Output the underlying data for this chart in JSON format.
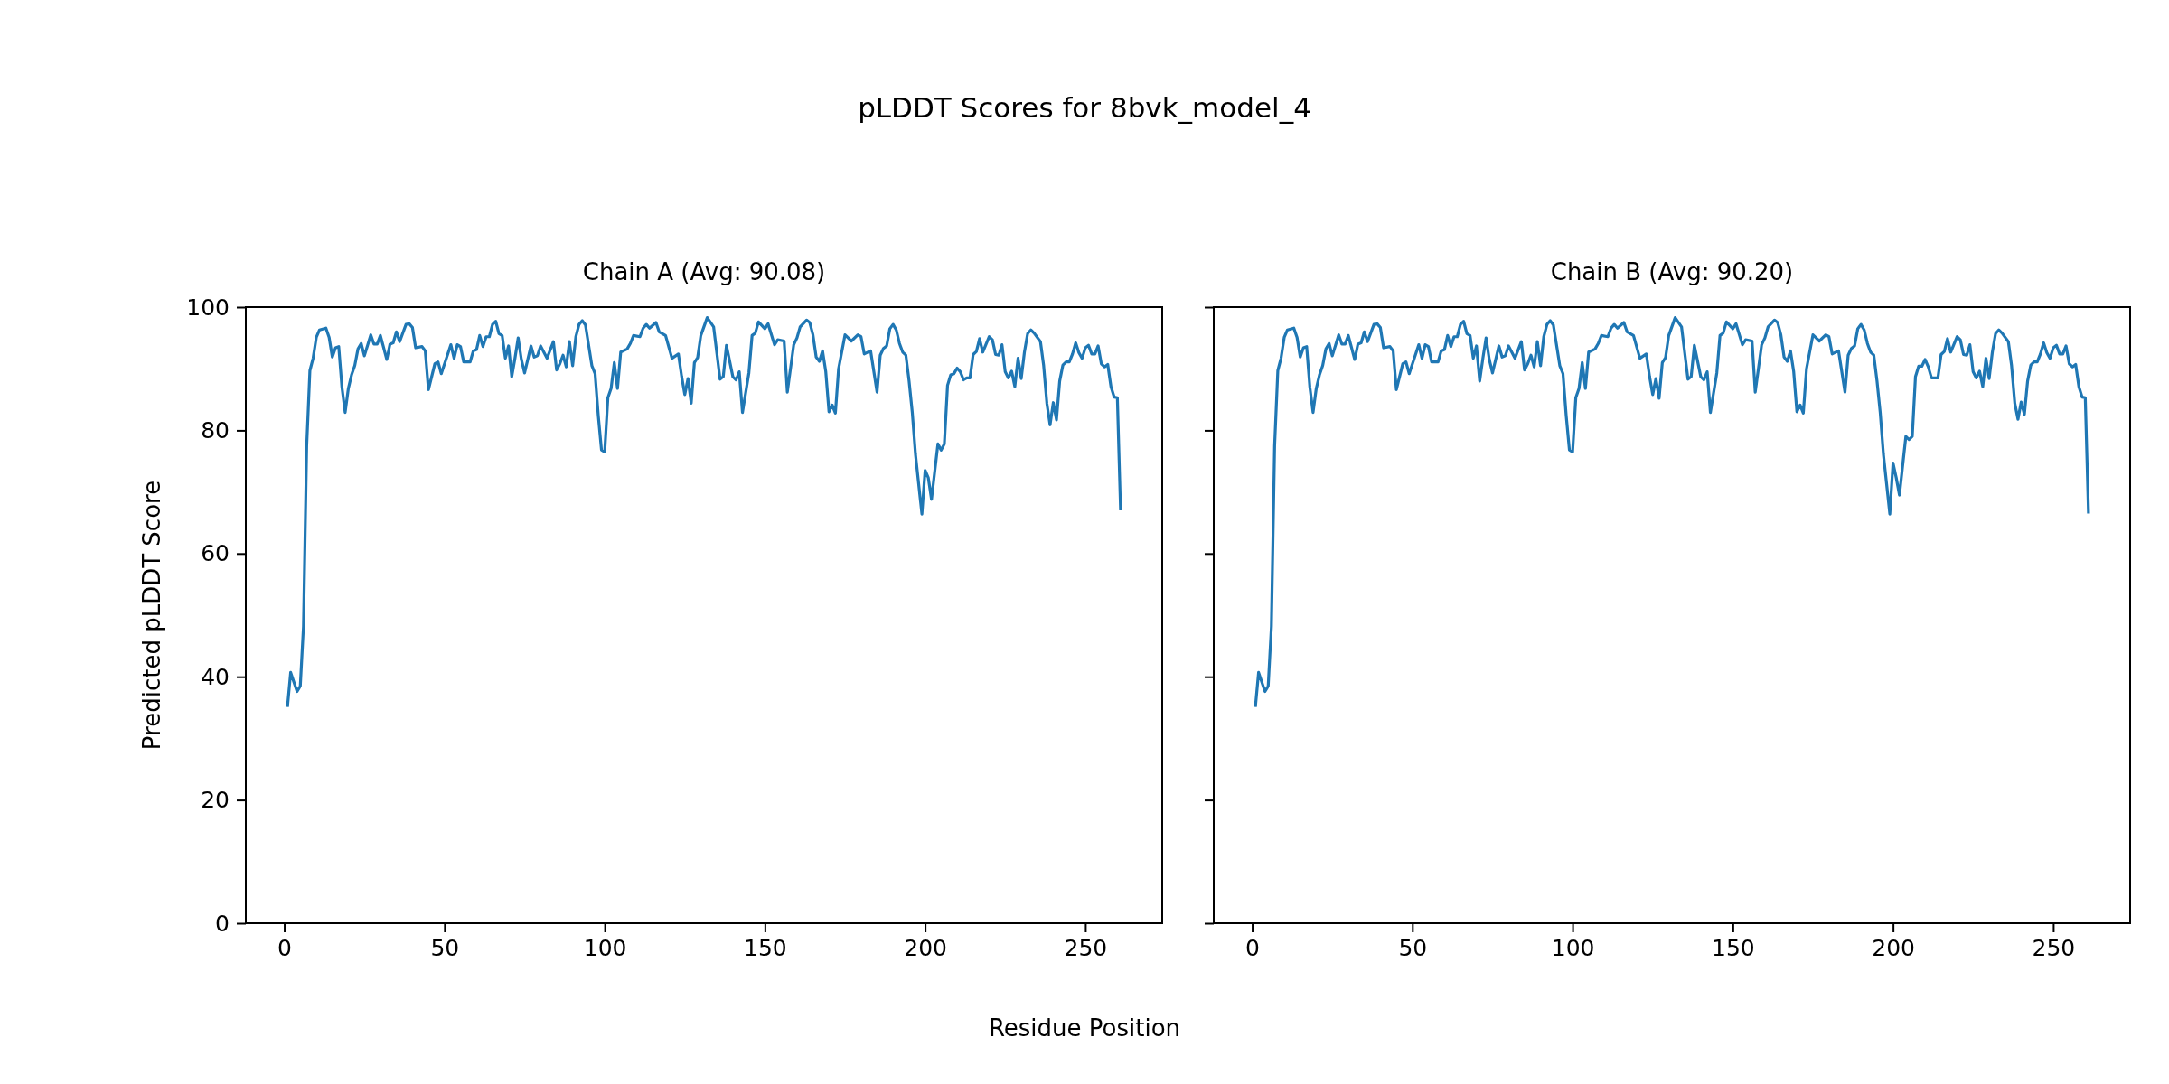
{
  "chart_data": [
    {
      "type": "line",
      "title": "Chain A (Avg: 90.08)",
      "annotations": [
        "pLDDT Scores for 8bvk_model_4"
      ],
      "xlabel": "Residue Position",
      "ylabel": "Predicted pLDDT Score",
      "xlim": [
        -12,
        274
      ],
      "xticks": [
        0,
        50,
        100,
        150,
        200,
        250
      ],
      "ylim": [
        0,
        100
      ],
      "yticks": [
        0,
        20,
        40,
        60,
        80,
        100
      ],
      "grid": false,
      "marker": "none",
      "line_style": "solid",
      "series": [
        {
          "color": "#1f77b4",
          "x": [
            1,
            2,
            4,
            5,
            6,
            7,
            8,
            9,
            10,
            11,
            13,
            14,
            15,
            16,
            17,
            18,
            19,
            20,
            21,
            22,
            23,
            24,
            25,
            27,
            28,
            29,
            30,
            32,
            33,
            34,
            35,
            36,
            38,
            39,
            40,
            41,
            43,
            44,
            45,
            47,
            48,
            49,
            52,
            53,
            54,
            55,
            56,
            58,
            59,
            60,
            61,
            62,
            63,
            64,
            65,
            66,
            67,
            68,
            69,
            70,
            71,
            72,
            73,
            74,
            75,
            77,
            78,
            79,
            80,
            82,
            84,
            85,
            86,
            87,
            88,
            89,
            90,
            91,
            92,
            93,
            94,
            96,
            97,
            98,
            99,
            100,
            101,
            102,
            103,
            104,
            105,
            107,
            108,
            109,
            111,
            112,
            113,
            114,
            116,
            117,
            119,
            121,
            123,
            124,
            125,
            126,
            127,
            128,
            129,
            130,
            132,
            134,
            136,
            137,
            138,
            140,
            141,
            142,
            143,
            145,
            146,
            147,
            148,
            150,
            151,
            153,
            154,
            156,
            157,
            159,
            160,
            161,
            163,
            164,
            165,
            166,
            167,
            168,
            169,
            170,
            171,
            172,
            173,
            175,
            177,
            179,
            180,
            181,
            183,
            185,
            186,
            187,
            188,
            189,
            190,
            191,
            192,
            193,
            194,
            195,
            196,
            197,
            199,
            200,
            201,
            202,
            204,
            205,
            206,
            207,
            208,
            209,
            210,
            211,
            212,
            213,
            214,
            215,
            216,
            217,
            218,
            220,
            221,
            222,
            223,
            224,
            225,
            226,
            227,
            228,
            229,
            230,
            231,
            232,
            233,
            234,
            236,
            237,
            238,
            239,
            240,
            241,
            242,
            243,
            244,
            245,
            246,
            247,
            248,
            249,
            250,
            251,
            252,
            253,
            254,
            255,
            256,
            257,
            258,
            259,
            260,
            261
          ],
          "values": [
            35.1,
            40.7,
            37.6,
            38.5,
            48.2,
            77.5,
            89.7,
            91.7,
            95.1,
            96.3,
            96.6,
            95.1,
            91.9,
            93.4,
            93.6,
            87,
            82.9,
            86.8,
            89,
            90.5,
            93.2,
            94.1,
            92.1,
            95.5,
            94,
            94,
            95.4,
            91.5,
            94,
            94.2,
            96,
            94.4,
            97.2,
            97.3,
            96.7,
            93.4,
            93.6,
            92.9,
            86.6,
            90.8,
            91.1,
            89.2,
            93.9,
            91.7,
            93.9,
            93.6,
            91.1,
            91.1,
            92.9,
            93.1,
            95.4,
            93.6,
            95.2,
            95.2,
            97.2,
            97.7,
            95.7,
            95.4,
            91.7,
            93.7,
            88.7,
            91.7,
            95,
            91.5,
            89.3,
            93.7,
            91.9,
            92.1,
            93.7,
            91.7,
            94.4,
            89.8,
            90.8,
            92.2,
            90.3,
            94.4,
            90.5,
            95.2,
            97.2,
            97.8,
            97.1,
            90.5,
            89.2,
            82.4,
            76.8,
            76.5,
            85.3,
            86.8,
            91,
            86.8,
            92.7,
            93.2,
            94.1,
            95.4,
            95.2,
            96.6,
            97.2,
            96.6,
            97.5,
            96,
            95.4,
            91.7,
            92.4,
            88.8,
            85.8,
            88.4,
            84.4,
            91,
            91.8,
            95.4,
            98.3,
            96.8,
            88.3,
            88.7,
            93.8,
            88.7,
            88.2,
            89.5,
            82.9,
            89.3,
            95.4,
            95.8,
            97.6,
            96.5,
            97.3,
            93.9,
            94.7,
            94.5,
            86.2,
            93.9,
            95,
            96.8,
            97.9,
            97.5,
            95.5,
            91.9,
            91.2,
            92.9,
            89.5,
            83,
            84.1,
            82.8,
            90,
            95.5,
            94.5,
            95.5,
            95.2,
            92.4,
            92.9,
            86.2,
            92.2,
            93.3,
            93.7,
            96.5,
            97.2,
            96.3,
            94.1,
            92.7,
            92.2,
            88,
            82.9,
            76.1,
            66.4,
            73.5,
            72.3,
            68.8,
            77.8,
            76.8,
            77.8,
            87.3,
            89,
            89.2,
            90.1,
            89.5,
            88.2,
            88.5,
            88.5,
            92.3,
            92.8,
            94.9,
            92.7,
            95.2,
            94.7,
            92.3,
            92.2,
            93.9,
            89.5,
            88.5,
            89.6,
            87.1,
            91.7,
            88.4,
            92.7,
            95.7,
            96.3,
            95.8,
            94.4,
            90.5,
            84.4,
            80.9,
            84.5,
            81.7,
            88,
            90.6,
            91.1,
            91.1,
            92.4,
            94.2,
            92.6,
            91.7,
            93.4,
            93.8,
            92.4,
            92.4,
            93.7,
            90.8,
            90.3,
            90.7,
            87.1,
            85.4,
            85.3,
            67
          ]
        }
      ]
    },
    {
      "type": "line",
      "title": "Chain B (Avg: 90.20)",
      "xlim": [
        -12,
        274
      ],
      "xticks": [
        0,
        50,
        100,
        150,
        200,
        250
      ],
      "ylim": [
        0,
        100
      ],
      "yticks": [
        0,
        20,
        40,
        60,
        80,
        100
      ],
      "tick_labels": "x",
      "grid": false,
      "marker": "none",
      "line_style": "solid",
      "series": [
        {
          "color": "#1f77b4",
          "x": [
            1,
            2,
            4,
            5,
            6,
            7,
            8,
            9,
            10,
            11,
            13,
            14,
            15,
            16,
            17,
            18,
            19,
            20,
            21,
            22,
            23,
            24,
            25,
            27,
            28,
            29,
            30,
            32,
            33,
            34,
            35,
            36,
            38,
            39,
            40,
            41,
            43,
            44,
            45,
            47,
            48,
            49,
            52,
            53,
            54,
            55,
            56,
            58,
            59,
            60,
            61,
            62,
            63,
            64,
            65,
            66,
            67,
            68,
            69,
            70,
            71,
            72,
            73,
            74,
            75,
            77,
            78,
            79,
            80,
            82,
            84,
            85,
            86,
            87,
            88,
            89,
            90,
            91,
            92,
            93,
            94,
            96,
            97,
            98,
            99,
            100,
            101,
            102,
            103,
            104,
            105,
            107,
            108,
            109,
            111,
            112,
            113,
            114,
            116,
            117,
            119,
            121,
            123,
            124,
            125,
            126,
            127,
            128,
            129,
            130,
            132,
            134,
            136,
            137,
            138,
            140,
            141,
            142,
            143,
            145,
            146,
            147,
            148,
            150,
            151,
            153,
            154,
            156,
            157,
            159,
            160,
            161,
            163,
            164,
            165,
            166,
            167,
            168,
            169,
            170,
            171,
            172,
            173,
            175,
            177,
            179,
            180,
            181,
            183,
            185,
            186,
            187,
            188,
            189,
            190,
            191,
            192,
            193,
            194,
            195,
            196,
            197,
            199,
            200,
            201,
            202,
            204,
            205,
            206,
            207,
            208,
            209,
            210,
            211,
            212,
            213,
            214,
            215,
            216,
            217,
            218,
            220,
            221,
            222,
            223,
            224,
            225,
            226,
            227,
            228,
            229,
            230,
            231,
            232,
            233,
            234,
            236,
            237,
            238,
            239,
            240,
            241,
            242,
            243,
            244,
            245,
            246,
            247,
            248,
            249,
            250,
            251,
            252,
            253,
            254,
            255,
            256,
            257,
            258,
            259,
            260,
            261
          ],
          "values": [
            35.1,
            40.7,
            37.6,
            38.5,
            48.2,
            77.5,
            89.7,
            91.7,
            95.1,
            96.3,
            96.6,
            95.1,
            91.9,
            93.4,
            93.6,
            87,
            82.9,
            86.8,
            89,
            90.5,
            93.2,
            94.1,
            92.1,
            95.5,
            94,
            94,
            95.4,
            91.5,
            94,
            94.2,
            96,
            94.4,
            97.2,
            97.3,
            96.7,
            93.4,
            93.6,
            92.9,
            86.6,
            90.8,
            91.1,
            89.2,
            93.9,
            91.7,
            93.9,
            93.6,
            91.1,
            91.1,
            92.9,
            93.1,
            95.4,
            93.6,
            95.2,
            95.2,
            97.2,
            97.7,
            95.7,
            95.4,
            91.7,
            93.7,
            88,
            91.7,
            95,
            91.5,
            89.3,
            93.7,
            91.9,
            92.1,
            93.7,
            91.7,
            94.4,
            89.8,
            90.8,
            92.2,
            90.3,
            94.4,
            90.5,
            95.2,
            97.2,
            97.8,
            97.1,
            90.5,
            89.2,
            82.4,
            76.8,
            76.5,
            85.3,
            86.8,
            91,
            86.8,
            92.7,
            93.2,
            94.1,
            95.4,
            95.2,
            96.6,
            97.2,
            96.6,
            97.5,
            96,
            95.4,
            91.7,
            92.4,
            88.8,
            85.8,
            88.4,
            85.2,
            91,
            91.8,
            95.4,
            98.3,
            96.8,
            88.3,
            88.7,
            93.8,
            88.7,
            88.2,
            89.5,
            82.9,
            89.3,
            95.4,
            95.8,
            97.6,
            96.5,
            97.3,
            93.9,
            94.7,
            94.5,
            86.2,
            93.9,
            95,
            96.8,
            97.9,
            97.5,
            95.5,
            91.9,
            91.2,
            92.9,
            89.5,
            83,
            84.1,
            82.8,
            90,
            95.5,
            94.5,
            95.5,
            95.2,
            92.4,
            92.9,
            86.2,
            92.2,
            93.3,
            93.7,
            96.5,
            97.2,
            96.3,
            94.1,
            92.7,
            92.2,
            88,
            82.9,
            76.1,
            66.4,
            74.7,
            72.3,
            69.5,
            79,
            78.5,
            79,
            88.7,
            90.4,
            90.4,
            91.5,
            90.3,
            88.5,
            88.5,
            88.5,
            92.3,
            92.8,
            94.9,
            92.7,
            95.2,
            94.7,
            92.3,
            92.2,
            93.9,
            89.5,
            88.5,
            89.6,
            87.1,
            91.7,
            88.4,
            92.7,
            95.7,
            96.3,
            95.8,
            94.4,
            90.5,
            84.4,
            81.8,
            84.6,
            82.6,
            88,
            90.6,
            91.1,
            91.1,
            92.4,
            94.2,
            92.6,
            91.7,
            93.4,
            93.8,
            92.4,
            92.4,
            93.7,
            90.8,
            90.3,
            90.7,
            87.1,
            85.4,
            85.3,
            66.5
          ]
        }
      ]
    }
  ]
}
